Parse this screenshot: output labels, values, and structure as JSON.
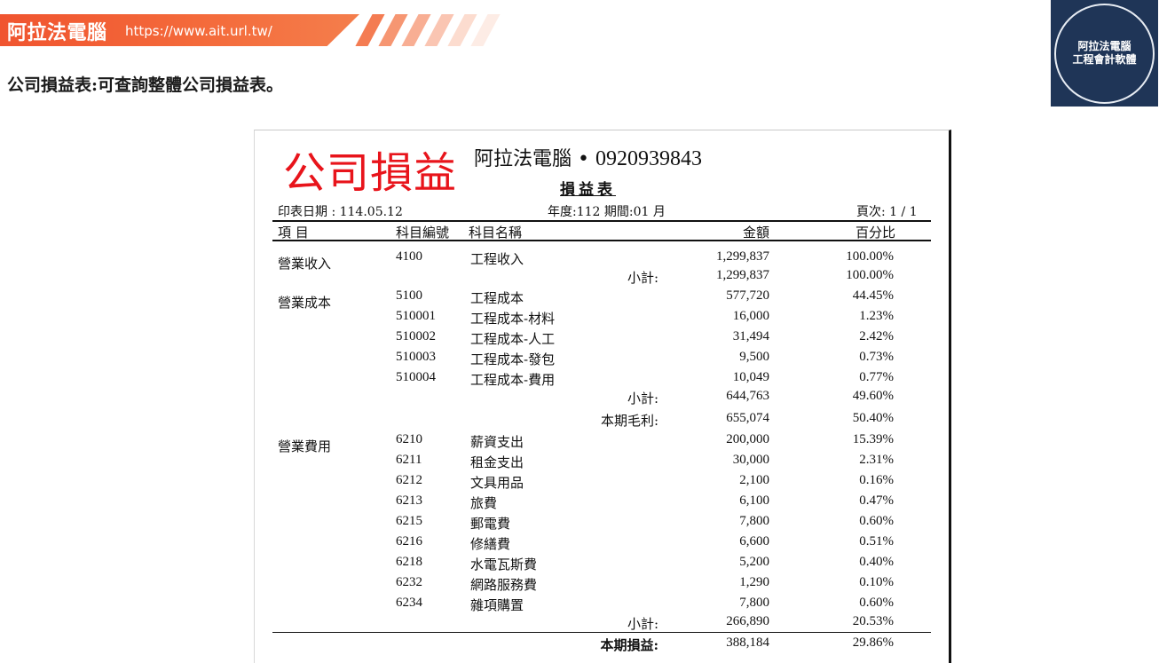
{
  "banner": {
    "brand": "阿拉法電腦",
    "url": "https://www.ait.url.tw/",
    "colors": {
      "primary": "#f0542f",
      "stripe": "#f6b49d"
    }
  },
  "badge": {
    "line1": "阿拉法電腦",
    "line2": "工程會計軟體",
    "background": "#1f3557"
  },
  "caption": "公司損益表:可查詢整體公司損益表。",
  "report": {
    "big_title": "公司損益",
    "company": "阿拉法電腦 •",
    "phone": "0920939843",
    "title": "損益表",
    "print_date": "印表日期 : 114.05.12",
    "period": "年度:112 期間:01 月",
    "page": "頁次: 1 / 1",
    "columns": {
      "item": "項 目",
      "code": "科目編號",
      "name": "科目名稱",
      "amount": "金額",
      "percent": "百分比"
    },
    "rows": [
      {
        "cat": "營業收入",
        "code": "4100",
        "name": "工程收入",
        "label": "",
        "amount": "1,299,837",
        "pct": "100.00%",
        "bold": false
      },
      {
        "cat": "",
        "code": "",
        "name": "",
        "label": "小計:",
        "amount": "1,299,837",
        "pct": "100.00%",
        "bold": false
      },
      {
        "cat": "營業成本",
        "code": "5100",
        "name": "工程成本",
        "label": "",
        "amount": "577,720",
        "pct": "44.45%",
        "bold": false
      },
      {
        "cat": "",
        "code": "510001",
        "name": "工程成本-材料",
        "label": "",
        "amount": "16,000",
        "pct": "1.23%",
        "bold": false
      },
      {
        "cat": "",
        "code": "510002",
        "name": "工程成本-人工",
        "label": "",
        "amount": "31,494",
        "pct": "2.42%",
        "bold": false
      },
      {
        "cat": "",
        "code": "510003",
        "name": "工程成本-發包",
        "label": "",
        "amount": "9,500",
        "pct": "0.73%",
        "bold": false
      },
      {
        "cat": "",
        "code": "510004",
        "name": "工程成本-費用",
        "label": "",
        "amount": "10,049",
        "pct": "0.77%",
        "bold": false
      },
      {
        "cat": "",
        "code": "",
        "name": "",
        "label": "小計:",
        "amount": "644,763",
        "pct": "49.60%",
        "bold": false
      },
      {
        "cat": "",
        "code": "",
        "name": "",
        "label": "本期毛利:",
        "amount": "655,074",
        "pct": "50.40%",
        "bold": false
      },
      {
        "cat": "營業費用",
        "code": "6210",
        "name": "薪資支出",
        "label": "",
        "amount": "200,000",
        "pct": "15.39%",
        "bold": false
      },
      {
        "cat": "",
        "code": "6211",
        "name": "租金支出",
        "label": "",
        "amount": "30,000",
        "pct": "2.31%",
        "bold": false
      },
      {
        "cat": "",
        "code": "6212",
        "name": "文具用品",
        "label": "",
        "amount": "2,100",
        "pct": "0.16%",
        "bold": false
      },
      {
        "cat": "",
        "code": "6213",
        "name": "旅費",
        "label": "",
        "amount": "6,100",
        "pct": "0.47%",
        "bold": false
      },
      {
        "cat": "",
        "code": "6215",
        "name": "郵電費",
        "label": "",
        "amount": "7,800",
        "pct": "0.60%",
        "bold": false
      },
      {
        "cat": "",
        "code": "6216",
        "name": "修繕費",
        "label": "",
        "amount": "6,600",
        "pct": "0.51%",
        "bold": false
      },
      {
        "cat": "",
        "code": "6218",
        "name": "水電瓦斯費",
        "label": "",
        "amount": "5,200",
        "pct": "0.40%",
        "bold": false
      },
      {
        "cat": "",
        "code": "6232",
        "name": "網路服務費",
        "label": "",
        "amount": "1,290",
        "pct": "0.10%",
        "bold": false
      },
      {
        "cat": "",
        "code": "6234",
        "name": "雜項購置",
        "label": "",
        "amount": "7,800",
        "pct": "0.60%",
        "bold": false
      },
      {
        "cat": "",
        "code": "",
        "name": "",
        "label": "小計:",
        "amount": "266,890",
        "pct": "20.53%",
        "bold": false
      },
      {
        "cat": "",
        "code": "",
        "name": "",
        "label": "本期損益:",
        "amount": "388,184",
        "pct": "29.86%",
        "bold": true
      }
    ]
  }
}
